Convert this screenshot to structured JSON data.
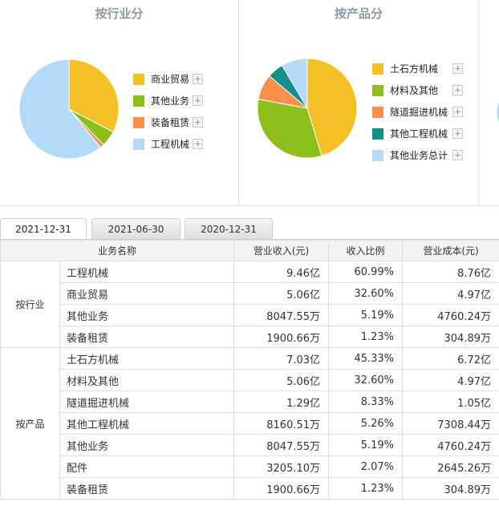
{
  "panels": {
    "industry": {
      "title": "按行业分",
      "legend": [
        {
          "label": "商业贸易",
          "color": "#f5c026"
        },
        {
          "label": "其他业务",
          "color": "#8cbf1a"
        },
        {
          "label": "装备租赁",
          "color": "#f98f4b"
        },
        {
          "label": "工程机械",
          "color": "#b4daf7"
        }
      ],
      "slices": [
        {
          "label": "商业贸易",
          "pct": 32.6,
          "color": "#f5c026"
        },
        {
          "label": "其他业务",
          "pct": 5.19,
          "color": "#8cbf1a"
        },
        {
          "label": "装备租赁",
          "pct": 1.23,
          "color": "#f98f4b"
        },
        {
          "label": "工程机械",
          "pct": 60.99,
          "color": "#b4daf7"
        }
      ]
    },
    "product": {
      "title": "按产品分",
      "legend": [
        {
          "label": "土石方机械",
          "color": "#f5c026"
        },
        {
          "label": "材料及其他",
          "color": "#8cbf1a"
        },
        {
          "label": "隧道掘进机械",
          "color": "#f98f4b"
        },
        {
          "label": "其他工程机械",
          "color": "#138f8c"
        },
        {
          "label": "其他业务总计",
          "color": "#b4daf7"
        }
      ],
      "slices": [
        {
          "label": "土石方机械",
          "pct": 45.33,
          "color": "#f5c026"
        },
        {
          "label": "材料及其他",
          "pct": 32.6,
          "color": "#8cbf1a"
        },
        {
          "label": "隧道掘进机械",
          "pct": 8.33,
          "color": "#f98f4b"
        },
        {
          "label": "其他工程机械",
          "pct": 5.26,
          "color": "#138f8c"
        },
        {
          "label": "其他业务总计",
          "pct": 8.48,
          "color": "#b4daf7"
        }
      ]
    }
  },
  "plus_symbol": "+",
  "tabs": [
    {
      "label": "2021-12-31",
      "active": true
    },
    {
      "label": "2021-06-30",
      "active": false
    },
    {
      "label": "2020-12-31",
      "active": false
    }
  ],
  "table": {
    "headers": [
      "业务名称",
      "营业收入(元)",
      "收入比例",
      "营业成本(元)"
    ],
    "groups": [
      {
        "category": "按行业",
        "rows": [
          {
            "name": "工程机械",
            "revenue": "9.46亿",
            "ratio": "60.99%",
            "cost": "8.76亿"
          },
          {
            "name": "商业贸易",
            "revenue": "5.06亿",
            "ratio": "32.60%",
            "cost": "4.97亿"
          },
          {
            "name": "其他业务",
            "revenue": "8047.55万",
            "ratio": "5.19%",
            "cost": "4760.24万"
          },
          {
            "name": "装备租赁",
            "revenue": "1900.66万",
            "ratio": "1.23%",
            "cost": "304.89万"
          }
        ]
      },
      {
        "category": "按产品",
        "rows": [
          {
            "name": "土石方机械",
            "revenue": "7.03亿",
            "ratio": "45.33%",
            "cost": "6.72亿"
          },
          {
            "name": "材料及其他",
            "revenue": "5.06亿",
            "ratio": "32.60%",
            "cost": "4.97亿"
          },
          {
            "name": "隧道掘进机械",
            "revenue": "1.29亿",
            "ratio": "8.33%",
            "cost": "1.05亿"
          },
          {
            "name": "其他工程机械",
            "revenue": "8160.51万",
            "ratio": "5.26%",
            "cost": "7308.44万"
          },
          {
            "name": "其他业务",
            "revenue": "8047.55万",
            "ratio": "5.19%",
            "cost": "4760.24万"
          },
          {
            "name": "配件",
            "revenue": "3205.10万",
            "ratio": "2.07%",
            "cost": "2645.26万"
          },
          {
            "name": "装备租赁",
            "revenue": "1900.66万",
            "ratio": "1.23%",
            "cost": "304.89万"
          }
        ]
      }
    ]
  }
}
